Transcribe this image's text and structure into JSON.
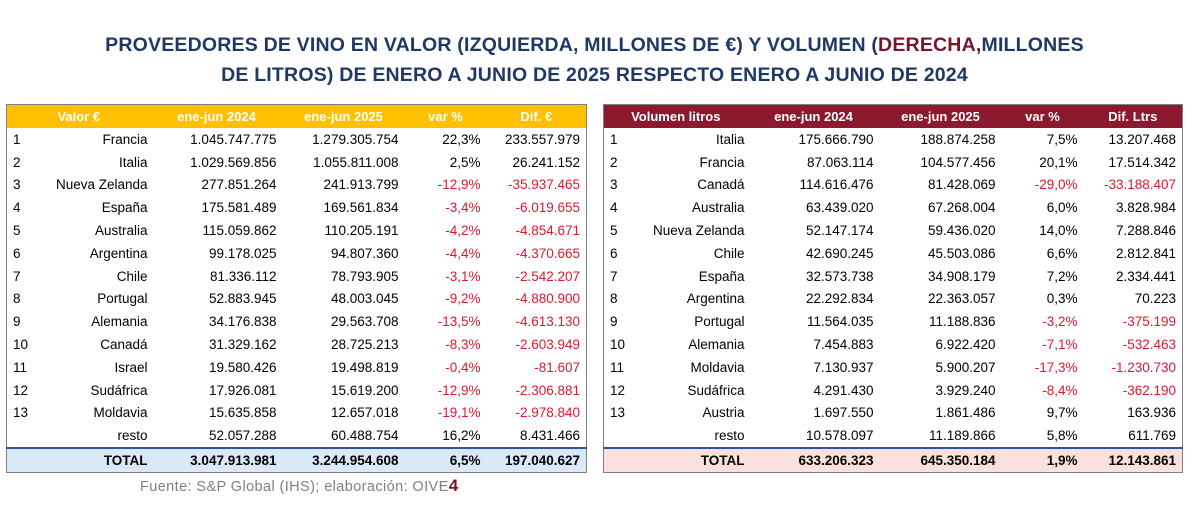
{
  "title": {
    "line1_a": "PROVEEDORES DE VINO EN VALOR (IZQUIERDA, MILLONES DE €) Y VOLUMEN (",
    "line1_b": "DERECHA,",
    "line1_c": "MILLONES",
    "line2": "DE LITROS) DE ENERO A JUNIO DE 2025 RESPECTO ENERO A JUNIO DE 2024"
  },
  "value_table": {
    "headers": [
      "Valor €",
      "ene-jun 2024",
      "ene-jun 2025",
      "var %",
      "Dif. €"
    ],
    "rows": [
      {
        "idx": "1",
        "country": "Francia",
        "v2024": "1.045.747.775",
        "v2025": "1.279.305.754",
        "var": "22,3%",
        "dif": "233.557.979"
      },
      {
        "idx": "2",
        "country": "Italia",
        "v2024": "1.029.569.856",
        "v2025": "1.055.811.008",
        "var": "2,5%",
        "dif": "26.241.152"
      },
      {
        "idx": "3",
        "country": "Nueva Zelanda",
        "v2024": "277.851.264",
        "v2025": "241.913.799",
        "var": "-12,9%",
        "dif": "-35.937.465"
      },
      {
        "idx": "4",
        "country": "España",
        "v2024": "175.581.489",
        "v2025": "169.561.834",
        "var": "-3,4%",
        "dif": "-6.019.655"
      },
      {
        "idx": "5",
        "country": "Australia",
        "v2024": "115.059.862",
        "v2025": "110.205.191",
        "var": "-4,2%",
        "dif": "-4.854.671"
      },
      {
        "idx": "6",
        "country": "Argentina",
        "v2024": "99.178.025",
        "v2025": "94.807.360",
        "var": "-4,4%",
        "dif": "-4.370.665"
      },
      {
        "idx": "7",
        "country": "Chile",
        "v2024": "81.336.112",
        "v2025": "78.793.905",
        "var": "-3,1%",
        "dif": "-2.542.207"
      },
      {
        "idx": "8",
        "country": "Portugal",
        "v2024": "52.883.945",
        "v2025": "48.003.045",
        "var": "-9,2%",
        "dif": "-4.880.900"
      },
      {
        "idx": "9",
        "country": "Alemania",
        "v2024": "34.176.838",
        "v2025": "29.563.708",
        "var": "-13,5%",
        "dif": "-4.613.130"
      },
      {
        "idx": "10",
        "country": "Canadá",
        "v2024": "31.329.162",
        "v2025": "28.725.213",
        "var": "-8,3%",
        "dif": "-2.603.949"
      },
      {
        "idx": "11",
        "country": "Israel",
        "v2024": "19.580.426",
        "v2025": "19.498.819",
        "var": "-0,4%",
        "dif": "-81.607"
      },
      {
        "idx": "12",
        "country": "Sudáfrica",
        "v2024": "17.926.081",
        "v2025": "15.619.200",
        "var": "-12,9%",
        "dif": "-2.306.881"
      },
      {
        "idx": "13",
        "country": "Moldavia",
        "v2024": "15.635.858",
        "v2025": "12.657.018",
        "var": "-19,1%",
        "dif": "-2.978.840"
      },
      {
        "idx": "",
        "country": "resto",
        "v2024": "52.057.288",
        "v2025": "60.488.754",
        "var": "16,2%",
        "dif": "8.431.466"
      }
    ],
    "total": {
      "label": "TOTAL",
      "v2024": "3.047.913.981",
      "v2025": "3.244.954.608",
      "var": "6,5%",
      "dif": "197.040.627"
    }
  },
  "volume_table": {
    "headers": [
      "Volumen litros",
      "ene-jun 2024",
      "ene-jun 2025",
      "var %",
      "Dif. Ltrs"
    ],
    "rows": [
      {
        "idx": "1",
        "country": "Italia",
        "v2024": "175.666.790",
        "v2025": "188.874.258",
        "var": "7,5%",
        "dif": "13.207.468"
      },
      {
        "idx": "2",
        "country": "Francia",
        "v2024": "87.063.114",
        "v2025": "104.577.456",
        "var": "20,1%",
        "dif": "17.514.342"
      },
      {
        "idx": "3",
        "country": "Canadá",
        "v2024": "114.616.476",
        "v2025": "81.428.069",
        "var": "-29,0%",
        "dif": "-33.188.407"
      },
      {
        "idx": "4",
        "country": "Australia",
        "v2024": "63.439.020",
        "v2025": "67.268.004",
        "var": "6,0%",
        "dif": "3.828.984"
      },
      {
        "idx": "5",
        "country": "Nueva Zelanda",
        "v2024": "52.147.174",
        "v2025": "59.436.020",
        "var": "14,0%",
        "dif": "7.288.846"
      },
      {
        "idx": "6",
        "country": "Chile",
        "v2024": "42.690.245",
        "v2025": "45.503.086",
        "var": "6,6%",
        "dif": "2.812.841"
      },
      {
        "idx": "7",
        "country": "España",
        "v2024": "32.573.738",
        "v2025": "34.908.179",
        "var": "7,2%",
        "dif": "2.334.441"
      },
      {
        "idx": "8",
        "country": "Argentina",
        "v2024": "22.292.834",
        "v2025": "22.363.057",
        "var": "0,3%",
        "dif": "70.223"
      },
      {
        "idx": "9",
        "country": "Portugal",
        "v2024": "11.564.035",
        "v2025": "11.188.836",
        "var": "-3,2%",
        "dif": "-375.199"
      },
      {
        "idx": "10",
        "country": "Alemania",
        "v2024": "7.454.883",
        "v2025": "6.922.420",
        "var": "-7,1%",
        "dif": "-532.463"
      },
      {
        "idx": "11",
        "country": "Moldavia",
        "v2024": "7.130.937",
        "v2025": "5.900.207",
        "var": "-17,3%",
        "dif": "-1.230.730"
      },
      {
        "idx": "12",
        "country": "Sudáfrica",
        "v2024": "4.291.430",
        "v2025": "3.929.240",
        "var": "-8,4%",
        "dif": "-362.190"
      },
      {
        "idx": "13",
        "country": "Austria",
        "v2024": "1.697.550",
        "v2025": "1.861.486",
        "var": "9,7%",
        "dif": "163.936"
      },
      {
        "idx": "",
        "country": "resto",
        "v2024": "10.578.097",
        "v2025": "11.189.866",
        "var": "5,8%",
        "dif": "611.769"
      }
    ],
    "total": {
      "label": "TOTAL",
      "v2024": "633.206.323",
      "v2025": "645.350.184",
      "var": "1,9%",
      "dif": "12.143.861"
    }
  },
  "source": {
    "text": "Fuente: S&P Global (IHS); elaboración: OIVE",
    "logo_digit": "4"
  },
  "colors": {
    "value_header": "#ffc000",
    "volume_header": "#8b1a2f",
    "negative": "#e0182d",
    "title": "#1f3864",
    "accent": "#7b1428"
  }
}
